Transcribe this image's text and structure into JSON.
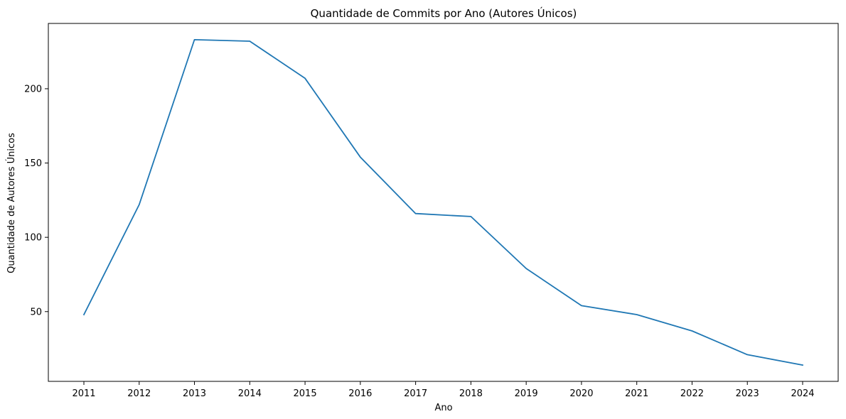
{
  "chart_data": {
    "type": "line",
    "title": "Quantidade de Commits por Ano (Autores Únicos)",
    "xlabel": "Ano",
    "ylabel": "Quantidade de Autores Únicos",
    "x": [
      "2011",
      "2012",
      "2013",
      "2014",
      "2015",
      "2016",
      "2017",
      "2018",
      "2019",
      "2020",
      "2021",
      "2022",
      "2023",
      "2024"
    ],
    "series": [
      {
        "values": [
          48,
          122,
          233,
          232,
          207,
          154,
          116,
          114,
          79,
          54,
          48,
          37,
          21,
          14
        ],
        "color": "#1f77b4"
      }
    ],
    "yticks": [
      50,
      100,
      150,
      200
    ],
    "ylim": [
      3.05,
      243.95
    ],
    "grid": false,
    "legend": "none"
  }
}
